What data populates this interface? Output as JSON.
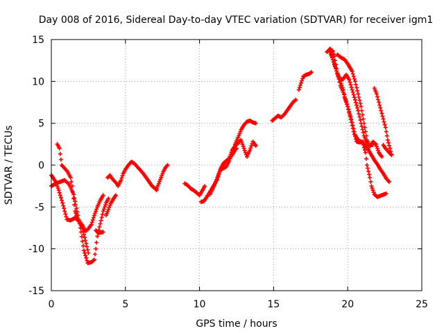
{
  "chart_data": {
    "type": "scatter",
    "title": "Day 008 of 2016, Sidereal Day-to-day VTEC variation (SDTVAR) for receiver igm1",
    "xlabel": "GPS time / hours",
    "ylabel": "SDTVAR / TECUs",
    "xlim": [
      0,
      25
    ],
    "ylim": [
      -15,
      15
    ],
    "xticks": [
      "0",
      "5",
      "10",
      "15",
      "20",
      "25"
    ],
    "yticks": [
      "-15",
      "-10",
      "-5",
      "0",
      "5",
      "10",
      "15"
    ],
    "grid": true,
    "marker": "plus",
    "color": "#ff0000",
    "series": [
      {
        "points": [
          [
            0.0,
            -2.5
          ],
          [
            0.3,
            -2.2
          ],
          [
            0.6,
            -2.0
          ],
          [
            0.9,
            -1.8
          ],
          [
            1.2,
            -2.3
          ],
          [
            1.5,
            -3.5
          ],
          [
            1.8,
            -6.0
          ],
          [
            2.0,
            -8.0
          ],
          [
            2.2,
            -10.2
          ],
          [
            2.45,
            -11.7
          ],
          [
            2.7,
            -11.6
          ],
          [
            2.9,
            -11.3
          ],
          [
            3.0,
            -10.0
          ],
          [
            3.1,
            -8.5
          ],
          [
            3.3,
            -7.0
          ],
          [
            3.5,
            -5.5
          ],
          [
            3.7,
            -4.5
          ],
          [
            3.85,
            -4.0
          ]
        ]
      },
      {
        "points": [
          [
            0.0,
            -1.2
          ],
          [
            0.3,
            -2.0
          ],
          [
            0.5,
            -3.0
          ],
          [
            0.7,
            -4.2
          ],
          [
            0.9,
            -5.5
          ],
          [
            1.05,
            -6.5
          ],
          [
            1.3,
            -6.6
          ],
          [
            1.6,
            -6.3
          ],
          [
            1.9,
            -6.8
          ],
          [
            2.1,
            -7.6
          ],
          [
            2.3,
            -9.0
          ],
          [
            2.5,
            -10.5
          ]
        ]
      },
      {
        "points": [
          [
            0.4,
            2.5
          ],
          [
            0.55,
            2.0
          ],
          [
            0.7,
            0.0
          ],
          [
            0.9,
            -0.4
          ],
          [
            1.1,
            -0.8
          ],
          [
            1.3,
            -1.5
          ],
          [
            1.4,
            -2.5
          ],
          [
            1.5,
            -4.0
          ],
          [
            1.6,
            -5.5
          ],
          [
            1.8,
            -6.5
          ],
          [
            2.1,
            -7.2
          ]
        ]
      },
      {
        "points": [
          [
            2.1,
            -7.2
          ],
          [
            2.3,
            -7.9
          ],
          [
            2.5,
            -7.6
          ],
          [
            2.7,
            -7.1
          ],
          [
            2.9,
            -6.0
          ],
          [
            3.1,
            -5.0
          ],
          [
            3.3,
            -4.2
          ],
          [
            3.5,
            -3.6
          ]
        ]
      },
      {
        "points": [
          [
            3.0,
            -7.8
          ],
          [
            3.2,
            -8.1
          ],
          [
            3.5,
            -8.0
          ]
        ]
      },
      {
        "points": [
          [
            3.7,
            -6.0
          ],
          [
            3.85,
            -5.3
          ],
          [
            4.0,
            -4.6
          ],
          [
            4.2,
            -4.0
          ],
          [
            4.35,
            -3.6
          ]
        ]
      },
      {
        "points": [
          [
            3.8,
            -1.5
          ],
          [
            3.95,
            -1.2
          ],
          [
            4.1,
            -1.6
          ],
          [
            4.3,
            -2.0
          ],
          [
            4.45,
            -2.3
          ]
        ]
      },
      {
        "points": [
          [
            4.5,
            -2.5
          ],
          [
            4.7,
            -1.8
          ],
          [
            4.85,
            -1.0
          ],
          [
            5.0,
            -0.5
          ],
          [
            5.2,
            0.0
          ],
          [
            5.4,
            0.4
          ],
          [
            5.6,
            0.2
          ],
          [
            5.8,
            -0.2
          ],
          [
            6.0,
            -0.6
          ],
          [
            6.2,
            -1.0
          ],
          [
            6.4,
            -1.5
          ],
          [
            6.6,
            -2.0
          ],
          [
            6.8,
            -2.5
          ],
          [
            7.0,
            -2.8
          ],
          [
            7.1,
            -3.0
          ]
        ]
      },
      {
        "points": [
          [
            7.1,
            -2.8
          ],
          [
            7.25,
            -2.2
          ],
          [
            7.4,
            -1.5
          ],
          [
            7.55,
            -0.8
          ],
          [
            7.7,
            -0.3
          ],
          [
            7.85,
            0.0
          ]
        ]
      },
      {
        "points": [
          [
            9.0,
            -2.2
          ],
          [
            9.2,
            -2.4
          ],
          [
            9.4,
            -2.8
          ],
          [
            9.6,
            -3.0
          ],
          [
            9.8,
            -3.3
          ],
          [
            10.0,
            -3.6
          ],
          [
            10.2,
            -3.0
          ],
          [
            10.35,
            -2.5
          ]
        ]
      },
      {
        "points": [
          [
            10.1,
            -4.4
          ],
          [
            10.3,
            -4.3
          ],
          [
            10.6,
            -3.5
          ],
          [
            10.9,
            -2.6
          ],
          [
            11.2,
            -1.7
          ],
          [
            11.4,
            -0.5
          ],
          [
            11.6,
            0.2
          ],
          [
            11.8,
            0.5
          ],
          [
            12.0,
            0.8
          ],
          [
            12.2,
            1.2
          ],
          [
            12.4,
            1.8
          ],
          [
            12.5,
            2.0
          ]
        ]
      },
      {
        "points": [
          [
            10.7,
            -3.5
          ],
          [
            10.9,
            -2.8
          ],
          [
            11.1,
            -2.0
          ],
          [
            11.3,
            -1.0
          ],
          [
            11.5,
            -0.3
          ],
          [
            11.7,
            0.3
          ],
          [
            12.0,
            0.8
          ],
          [
            12.2,
            1.8
          ],
          [
            12.4,
            2.3
          ]
        ]
      },
      {
        "points": [
          [
            11.5,
            -0.5
          ],
          [
            11.8,
            -0.2
          ],
          [
            12.0,
            0.5
          ],
          [
            12.2,
            1.5
          ],
          [
            12.4,
            2.3
          ],
          [
            12.6,
            2.6
          ],
          [
            12.8,
            3.0
          ],
          [
            13.0,
            2.0
          ],
          [
            13.2,
            1.0
          ],
          [
            13.4,
            1.8
          ],
          [
            13.6,
            2.8
          ],
          [
            13.8,
            2.3
          ]
        ]
      },
      {
        "points": [
          [
            12.4,
            2.5
          ],
          [
            12.6,
            3.3
          ],
          [
            12.8,
            4.2
          ],
          [
            13.0,
            4.8
          ],
          [
            13.2,
            5.2
          ],
          [
            13.4,
            5.3
          ],
          [
            13.6,
            5.1
          ],
          [
            13.8,
            5.0
          ]
        ]
      },
      {
        "points": [
          [
            14.9,
            5.3
          ],
          [
            15.1,
            5.6
          ],
          [
            15.3,
            5.9
          ],
          [
            15.5,
            5.7
          ],
          [
            15.7,
            6.0
          ],
          [
            15.9,
            6.5
          ],
          [
            16.1,
            7.0
          ],
          [
            16.3,
            7.5
          ],
          [
            16.5,
            7.8
          ]
        ]
      },
      {
        "points": [
          [
            16.7,
            9.0
          ],
          [
            16.85,
            9.8
          ],
          [
            17.0,
            10.6
          ],
          [
            17.2,
            10.8
          ],
          [
            17.4,
            10.9
          ],
          [
            17.55,
            11.1
          ]
        ]
      },
      {
        "points": [
          [
            18.6,
            13.5
          ],
          [
            18.8,
            13.9
          ],
          [
            19.0,
            13.6
          ],
          [
            19.1,
            13.0
          ],
          [
            19.2,
            12.0
          ],
          [
            19.3,
            11.0
          ],
          [
            19.5,
            10.0
          ],
          [
            19.7,
            9.0
          ],
          [
            19.8,
            8.0
          ],
          [
            20.0,
            7.0
          ],
          [
            20.2,
            5.5
          ],
          [
            20.4,
            4.0
          ],
          [
            20.6,
            2.8
          ],
          [
            20.8,
            2.7
          ],
          [
            21.0,
            2.8
          ],
          [
            21.2,
            2.3
          ],
          [
            21.4,
            1.8
          ],
          [
            21.6,
            1.2
          ],
          [
            21.8,
            0.6
          ],
          [
            22.0,
            0.1
          ],
          [
            22.2,
            -0.5
          ],
          [
            22.4,
            -1.0
          ],
          [
            22.6,
            -1.6
          ],
          [
            22.8,
            -2.0
          ]
        ]
      },
      {
        "points": [
          [
            18.8,
            13.5
          ],
          [
            19.0,
            12.6
          ],
          [
            19.2,
            11.6
          ],
          [
            19.3,
            10.9
          ],
          [
            19.4,
            10.3
          ],
          [
            19.5,
            9.5
          ],
          [
            19.7,
            8.7
          ],
          [
            19.9,
            7.6
          ],
          [
            20.1,
            6.4
          ],
          [
            20.3,
            5.1
          ],
          [
            20.5,
            3.6
          ],
          [
            20.7,
            3.0
          ],
          [
            21.0,
            2.7
          ],
          [
            21.2,
            1.5
          ],
          [
            21.3,
            0.0
          ],
          [
            21.5,
            -1.5
          ],
          [
            21.6,
            -2.5
          ],
          [
            21.8,
            -3.5
          ],
          [
            22.0,
            -3.8
          ],
          [
            22.3,
            -3.6
          ],
          [
            22.6,
            -3.4
          ]
        ]
      },
      {
        "points": [
          [
            19.3,
            13.2
          ],
          [
            19.5,
            12.9
          ],
          [
            19.8,
            12.6
          ],
          [
            20.0,
            12.1
          ],
          [
            20.3,
            11.2
          ],
          [
            20.5,
            10.0
          ],
          [
            20.7,
            8.5
          ],
          [
            20.9,
            7.0
          ],
          [
            21.1,
            5.0
          ],
          [
            21.3,
            3.0
          ],
          [
            21.5,
            2.2
          ],
          [
            21.7,
            2.8
          ],
          [
            21.9,
            2.5
          ],
          [
            22.1,
            1.5
          ],
          [
            22.3,
            1.0
          ]
        ]
      },
      {
        "points": [
          [
            18.9,
            13.2
          ],
          [
            19.1,
            12.0
          ],
          [
            19.3,
            11.0
          ],
          [
            19.5,
            10.2
          ],
          [
            19.7,
            10.3
          ],
          [
            19.9,
            10.8
          ],
          [
            20.1,
            10.2
          ],
          [
            20.3,
            9.0
          ],
          [
            20.5,
            7.8
          ],
          [
            20.7,
            6.5
          ],
          [
            20.9,
            5.0
          ],
          [
            21.1,
            3.5
          ],
          [
            21.3,
            2.5
          ],
          [
            21.5,
            2.4
          ],
          [
            21.7,
            2.4
          ]
        ]
      },
      {
        "points": [
          [
            21.8,
            9.2
          ],
          [
            21.95,
            8.5
          ],
          [
            22.1,
            7.5
          ],
          [
            22.25,
            6.5
          ],
          [
            22.4,
            5.5
          ],
          [
            22.55,
            4.5
          ],
          [
            22.7,
            3.0
          ],
          [
            22.85,
            2.0
          ],
          [
            22.95,
            1.3
          ]
        ]
      },
      {
        "points": [
          [
            22.4,
            2.4
          ],
          [
            22.55,
            2.0
          ],
          [
            22.7,
            1.7
          ],
          [
            22.85,
            1.4
          ],
          [
            22.95,
            1.2
          ]
        ]
      }
    ]
  }
}
